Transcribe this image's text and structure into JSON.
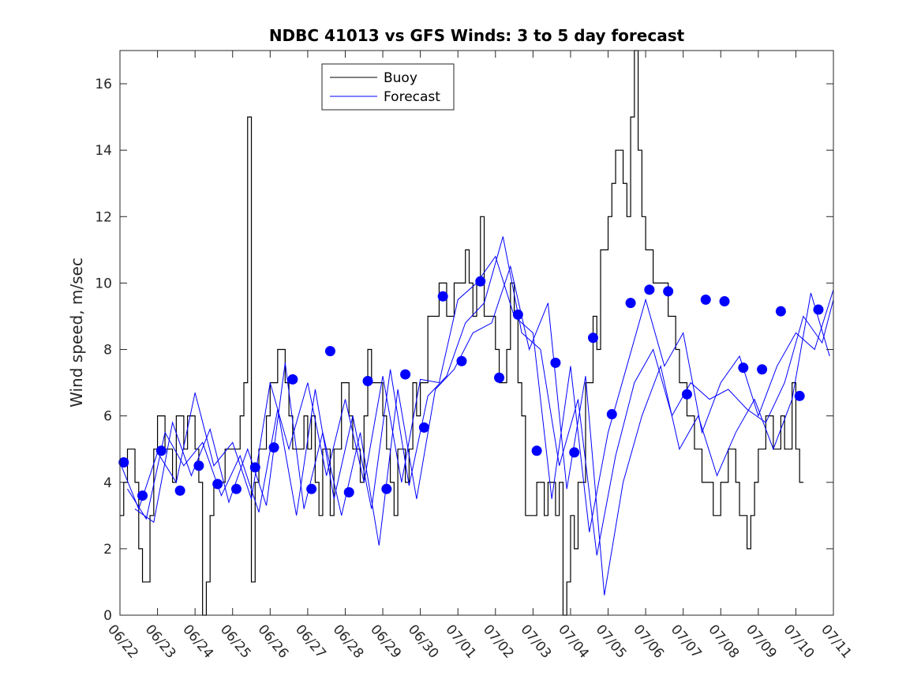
{
  "chart_data": {
    "type": "line",
    "title": "NDBC 41013 vs GFS Winds: 3 to 5 day forecast",
    "xlabel": "",
    "ylabel": "Wind speed, m/sec",
    "xlim": [
      0,
      19
    ],
    "ylim": [
      0,
      17
    ],
    "x_tick_labels": [
      "06/22",
      "06/23",
      "06/24",
      "06/25",
      "06/26",
      "06/27",
      "06/28",
      "06/29",
      "06/30",
      "07/01",
      "07/02",
      "07/03",
      "07/04",
      "07/05",
      "07/06",
      "07/07",
      "07/08",
      "07/09",
      "07/10",
      "07/11"
    ],
    "y_ticks": [
      0,
      2,
      4,
      6,
      8,
      10,
      12,
      14,
      16
    ],
    "legend": {
      "placement": "top-center",
      "entries": [
        {
          "name": "Buoy",
          "color": "#000000"
        },
        {
          "name": "Forecast",
          "color": "#0000ff"
        }
      ]
    },
    "colors": {
      "buoy": "#000000",
      "forecast": "#0000ff",
      "marker": "#0000ff"
    },
    "series": [
      {
        "name": "Buoy",
        "style": "step",
        "x": [
          0.0,
          0.1,
          0.2,
          0.3,
          0.4,
          0.5,
          0.6,
          0.7,
          0.8,
          0.9,
          1.0,
          1.1,
          1.2,
          1.3,
          1.4,
          1.5,
          1.6,
          1.7,
          1.8,
          1.9,
          2.0,
          2.1,
          2.2,
          2.3,
          2.4,
          2.5,
          2.6,
          2.7,
          2.8,
          2.9,
          3.0,
          3.1,
          3.2,
          3.3,
          3.4,
          3.5,
          3.6,
          3.7,
          3.8,
          3.9,
          4.0,
          4.1,
          4.2,
          4.3,
          4.4,
          4.5,
          4.6,
          4.7,
          4.8,
          4.9,
          5.0,
          5.1,
          5.2,
          5.3,
          5.4,
          5.5,
          5.6,
          5.7,
          5.8,
          5.9,
          6.0,
          6.1,
          6.2,
          6.3,
          6.4,
          6.5,
          6.6,
          6.7,
          6.8,
          6.9,
          7.0,
          7.1,
          7.2,
          7.3,
          7.4,
          7.5,
          7.6,
          7.7,
          7.8,
          7.9,
          8.0,
          8.1,
          8.2,
          8.3,
          8.4,
          8.5,
          8.6,
          8.7,
          8.8,
          8.9,
          9.0,
          9.1,
          9.2,
          9.3,
          9.4,
          9.5,
          9.6,
          9.7,
          9.8,
          9.9,
          10.0,
          10.1,
          10.2,
          10.3,
          10.4,
          10.5,
          10.6,
          10.7,
          10.8,
          10.9,
          11.0,
          11.1,
          11.2,
          11.3,
          11.4,
          11.5,
          11.6,
          11.7,
          11.8,
          11.9,
          12.0,
          12.1,
          12.2,
          12.3,
          12.4,
          12.5,
          12.6,
          12.7,
          12.8,
          12.9,
          13.0,
          13.1,
          13.2,
          13.3,
          13.4,
          13.5,
          13.6,
          13.7,
          13.8,
          13.9,
          14.0,
          14.1,
          14.2,
          14.3,
          14.4,
          14.5,
          14.6,
          14.7,
          14.8,
          14.9,
          15.0,
          15.1,
          15.2,
          15.3,
          15.4,
          15.5,
          15.6,
          15.7,
          15.8,
          15.9,
          16.0,
          16.1,
          16.2,
          16.3,
          16.4,
          16.5,
          16.6,
          16.7,
          16.8,
          16.9,
          17.0,
          17.1,
          17.2,
          17.3,
          17.4,
          17.5,
          17.6,
          17.7,
          17.8,
          17.9,
          18.0,
          18.1
        ],
        "y": [
          3,
          4,
          5,
          5,
          4,
          2,
          1,
          1,
          3,
          5,
          6,
          6,
          5,
          5,
          4,
          6,
          6,
          5,
          6,
          6,
          5,
          4,
          0,
          1,
          3,
          4,
          4,
          4,
          5,
          5,
          5,
          5,
          6,
          7,
          15,
          1,
          4,
          5,
          5,
          6,
          7,
          7,
          8,
          8,
          7,
          6,
          5,
          5,
          5,
          6,
          5,
          6,
          4,
          3,
          5,
          5,
          3,
          5,
          5,
          7,
          7,
          6,
          5,
          5,
          4,
          6,
          8,
          7,
          7,
          7,
          6,
          5,
          4,
          3,
          5,
          5,
          4,
          5,
          7,
          6,
          7,
          7,
          9,
          9,
          9,
          10,
          10,
          9,
          9,
          10,
          10,
          10,
          11,
          10,
          9,
          10,
          12,
          9,
          9,
          9,
          8,
          7,
          7,
          8,
          10,
          9,
          7,
          6,
          3,
          3,
          3,
          4,
          4,
          3,
          4,
          4,
          3,
          4,
          0,
          1,
          3,
          2,
          4,
          4,
          7,
          7,
          9,
          8,
          11,
          11,
          12,
          13,
          14,
          14,
          13,
          12,
          15,
          17,
          14,
          12,
          11,
          11,
          10,
          10,
          10,
          10,
          9,
          9,
          8,
          7,
          7,
          6,
          6,
          5,
          5,
          4,
          4,
          4,
          3,
          3,
          4,
          4,
          5,
          5,
          4,
          3,
          3,
          2,
          3,
          4,
          5,
          5,
          6,
          6,
          5,
          5,
          6,
          5,
          5,
          7,
          5,
          4
        ]
      },
      {
        "name": "Forecast",
        "style": "line",
        "x": [
          0.0,
          0.5,
          1.0,
          1.5,
          2.0,
          2.5,
          3.0,
          3.5,
          4.0,
          4.5,
          5.0,
          5.5,
          6.0,
          6.5,
          7.0,
          7.5,
          8.0,
          8.5,
          9.0,
          9.5,
          10.0,
          10.5,
          11.0,
          11.5,
          12.0,
          12.5,
          13.0,
          13.5,
          14.0,
          14.5,
          15.0,
          15.5,
          16.0,
          16.5,
          17.0,
          17.5,
          18.0,
          18.5,
          19.0
        ],
        "y": [
          4.6,
          3.2,
          4.9,
          4.0,
          6.7,
          4.5,
          5.2,
          3.5,
          7.0,
          5.0,
          7.0,
          4.2,
          6.5,
          4.0,
          7.2,
          4.0,
          7.1,
          7.0,
          9.5,
          10.0,
          10.8,
          9.0,
          8.5,
          3.5,
          7.5,
          2.5,
          5.5,
          7.5,
          9.5,
          7.5,
          8.5,
          5.5,
          7.0,
          7.8,
          6.0,
          7.5,
          8.5,
          8.0,
          9.8
        ]
      },
      {
        "name": "Forecast",
        "style": "line",
        "x": [
          0.2,
          0.7,
          1.2,
          1.7,
          2.2,
          2.7,
          3.2,
          3.7,
          4.2,
          4.7,
          5.2,
          5.7,
          6.2,
          6.7,
          7.2,
          7.7,
          8.2,
          8.7,
          9.2,
          9.7,
          10.2,
          10.7,
          11.2,
          11.7,
          12.2,
          12.7,
          13.2,
          13.7,
          14.2,
          14.7,
          15.2,
          15.7,
          16.2,
          16.7,
          17.2,
          17.7,
          18.2,
          18.7,
          19.0
        ],
        "y": [
          3.8,
          2.9,
          5.5,
          4.5,
          5.2,
          3.6,
          4.8,
          3.1,
          6.2,
          3.0,
          6.8,
          3.5,
          6.0,
          3.2,
          7.4,
          3.9,
          6.6,
          7.2,
          8.8,
          9.4,
          11.4,
          8.5,
          8.0,
          4.5,
          6.5,
          1.8,
          4.8,
          7.0,
          8.0,
          6.0,
          7.0,
          6.5,
          6.8,
          6.2,
          5.8,
          7.0,
          9.0,
          8.2,
          9.5
        ]
      },
      {
        "name": "Forecast",
        "style": "line",
        "x": [
          0.4,
          0.9,
          1.4,
          1.9,
          2.4,
          2.9,
          3.4,
          3.9,
          4.4,
          4.9,
          5.4,
          5.9,
          6.4,
          6.9,
          7.4,
          7.9,
          8.4,
          8.9,
          9.4,
          9.9,
          10.4,
          10.9,
          11.4,
          11.9,
          12.4,
          12.9,
          13.4,
          13.9,
          14.4,
          14.9,
          15.4,
          15.9,
          16.4,
          16.9,
          17.4,
          17.9,
          18.4,
          18.9
        ],
        "y": [
          3.2,
          2.8,
          5.8,
          4.2,
          5.6,
          3.4,
          5.0,
          3.3,
          7.6,
          3.2,
          5.5,
          3.0,
          5.5,
          2.1,
          6.8,
          3.5,
          6.8,
          7.4,
          8.5,
          8.8,
          10.5,
          8.0,
          9.4,
          3.8,
          7.2,
          0.6,
          4.0,
          6.0,
          7.5,
          5.0,
          6.0,
          4.2,
          5.5,
          6.5,
          5.0,
          6.5,
          9.7,
          7.8
        ]
      }
    ],
    "markers": {
      "name": "Forecast",
      "x": [
        0.1,
        0.6,
        1.1,
        1.6,
        2.1,
        2.6,
        3.1,
        3.6,
        4.1,
        4.6,
        5.1,
        5.6,
        6.1,
        6.6,
        7.1,
        7.6,
        8.1,
        8.6,
        9.1,
        9.6,
        10.1,
        10.6,
        11.1,
        11.6,
        12.1,
        12.6,
        13.1,
        13.6,
        14.1,
        14.6,
        15.1,
        15.6,
        16.1,
        16.6,
        17.1,
        17.6,
        18.1,
        18.6
      ],
      "y": [
        4.6,
        3.6,
        4.95,
        3.75,
        4.5,
        3.95,
        3.8,
        4.45,
        5.05,
        7.1,
        3.8,
        7.95,
        3.7,
        7.05,
        3.8,
        7.25,
        5.65,
        9.6,
        7.65,
        10.05,
        7.15,
        9.05,
        4.95,
        7.6,
        4.9,
        8.35,
        6.05,
        9.4,
        9.8,
        9.75,
        6.65,
        9.5,
        9.45,
        7.45,
        7.4,
        9.15,
        6.6,
        9.2
      ]
    }
  }
}
